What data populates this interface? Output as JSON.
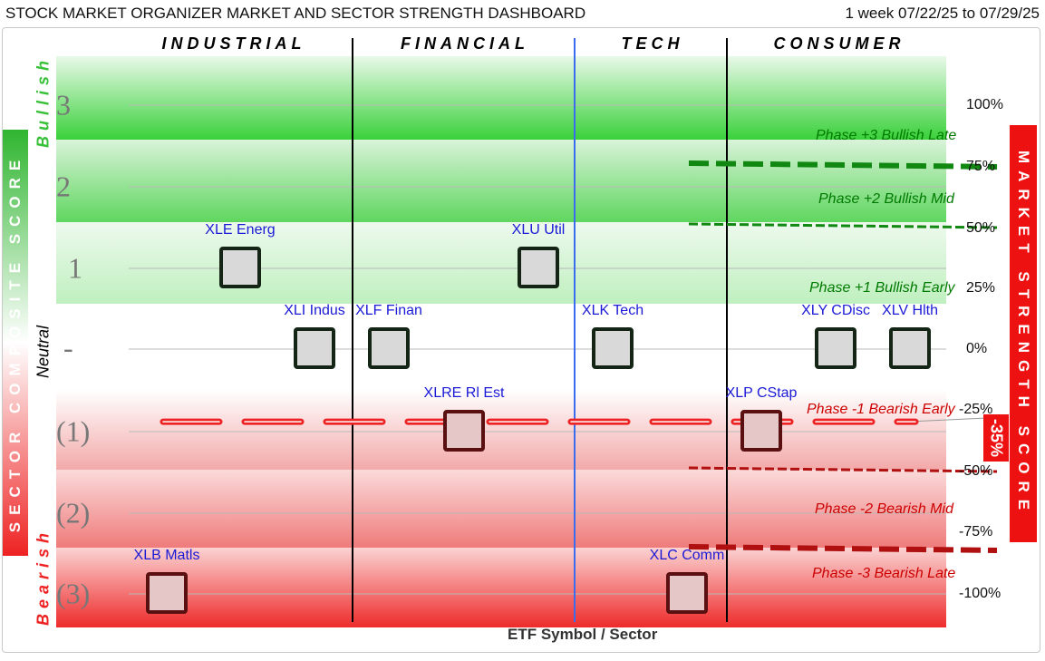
{
  "header": {
    "title": "STOCK MARKET ORGANIZER MARKET AND SECTOR STRENGTH DASHBOARD",
    "date_range": "1 week 07/22/25 to 07/29/25"
  },
  "watermark": [
    "STOCK",
    "MARKET",
    "ORGANIZER"
  ],
  "colors": {
    "bullish": "#2ecc2e",
    "bearish": "#ee2222",
    "etf_label": "#1a1ad6",
    "market_score": "#ee1111",
    "phase_bull": "#007a00",
    "phase_bear": "#cc0000",
    "tech_divider": "#3a6cf0"
  },
  "chart_data": {
    "type": "scatter",
    "sectors": [
      "INDUSTRIAL",
      "FINANCIAL",
      "TECH",
      "CONSUMER"
    ],
    "xlabel": "ETF Symbol / Sector",
    "y_left_label": "SECTOR COMPOSITE SCORE",
    "y_left_ticks": [
      "3",
      "2",
      "1",
      "-",
      "(1)",
      "(2)",
      "(3)"
    ],
    "y_left_range": [
      -3,
      3
    ],
    "band_words": {
      "bullish": "Bullish",
      "neutral": "Neutral",
      "bearish": "Bearish"
    },
    "y_right_label": "MARKET STRENGTH SCORE",
    "y_right_ticks": [
      "100%",
      "75%",
      "50%",
      "25%",
      "0%",
      "-25%",
      "-50%",
      "-75%",
      "-100%"
    ],
    "y_right_range": [
      -100,
      100
    ],
    "market_strength_score": "-35%",
    "market_strength_value": -35,
    "phases": [
      {
        "label": "Phase +3 Bullish Late",
        "y": 87.5
      },
      {
        "label": "Phase +2 Bullish Mid",
        "y": 62.5
      },
      {
        "label": "Phase +1 Bullish Early",
        "y": 25
      },
      {
        "label": "Phase -1 Bearish Early",
        "y": -25
      },
      {
        "label": "Phase -2 Bearish Mid",
        "y": -62.5
      },
      {
        "label": "Phase -3 Bearish Late",
        "y": -87.5
      }
    ],
    "points": [
      {
        "label": "XLE Energ",
        "sector": "INDUSTRIAL",
        "score": 1
      },
      {
        "label": "XLU Util",
        "sector": "FINANCIAL",
        "score": 1
      },
      {
        "label": "XLI Indus",
        "sector": "INDUSTRIAL",
        "score": 0
      },
      {
        "label": "XLF Finan",
        "sector": "FINANCIAL",
        "score": 0
      },
      {
        "label": "XLK Tech",
        "sector": "TECH",
        "score": 0
      },
      {
        "label": "XLY CDisc",
        "sector": "CONSUMER",
        "score": 0
      },
      {
        "label": "XLV Hlth",
        "sector": "CONSUMER",
        "score": 0
      },
      {
        "label": "XLRE Rl Est",
        "sector": "FINANCIAL",
        "score": -1
      },
      {
        "label": "XLP CStap",
        "sector": "CONSUMER",
        "score": -1
      },
      {
        "label": "XLB Matls",
        "sector": "INDUSTRIAL",
        "score": -3
      },
      {
        "label": "XLC Comm",
        "sector": "TECH",
        "score": -3
      }
    ]
  }
}
